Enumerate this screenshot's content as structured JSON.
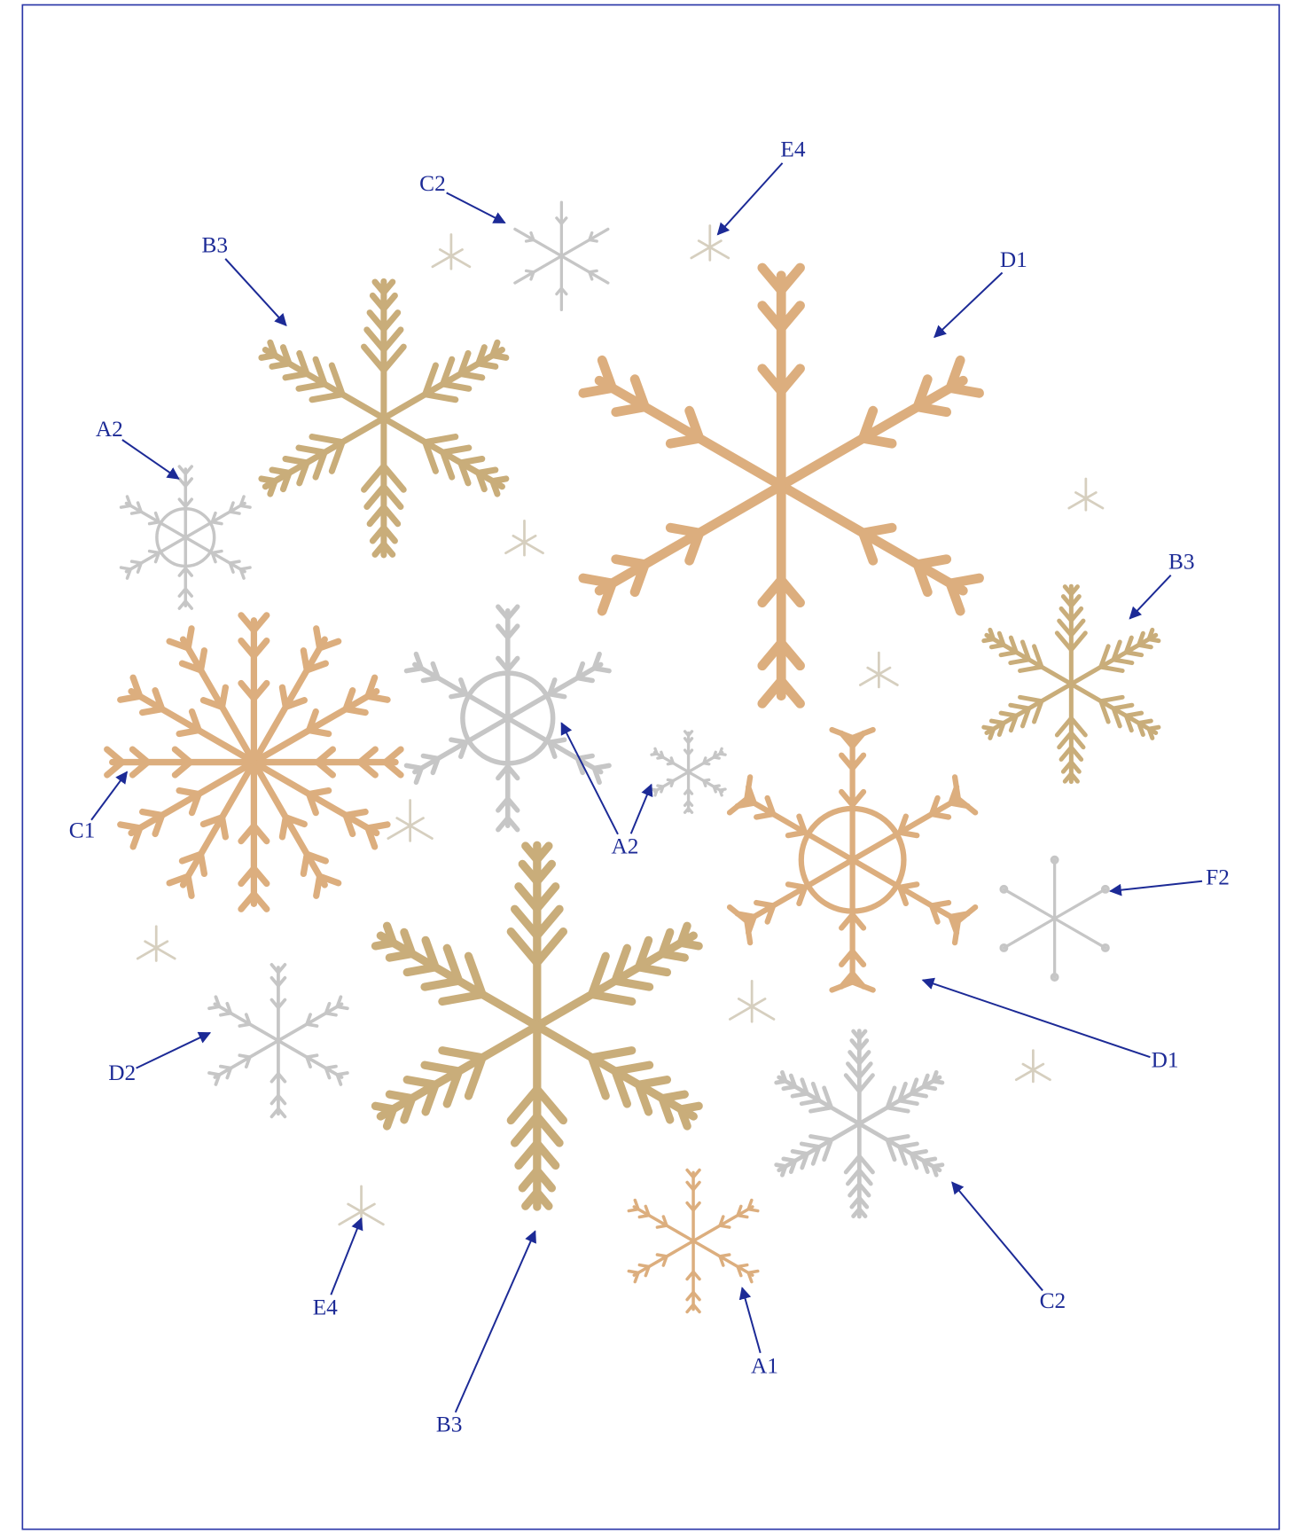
{
  "callouts": [
    "C2",
    "E4",
    "B3",
    "D1",
    "A2",
    "B3",
    "A2",
    "C1",
    "F2",
    "D1",
    "D2",
    "C2",
    "E4",
    "A1",
    "B3"
  ]
}
